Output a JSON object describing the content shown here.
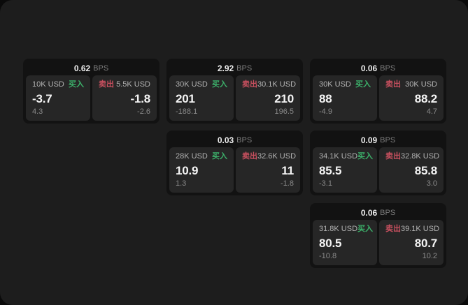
{
  "colors": {
    "buy_green": "#3cb06a",
    "sell_red": "#c8505f",
    "window_bg": "#1d1d1d",
    "card_bg": "#121212",
    "subcard_bg": "#262626"
  },
  "cards": [
    {
      "bps": "0.62",
      "bps_unit": "BPS",
      "buy": {
        "amount": "10K USD",
        "label": "买入",
        "value": "-3.7",
        "delta": "4.3"
      },
      "sell": {
        "label": "卖出",
        "amount": "5.5K USD",
        "value": "-1.8",
        "delta": "-2.6"
      }
    },
    {
      "bps": "2.92",
      "bps_unit": "BPS",
      "buy": {
        "amount": "30K USD",
        "label": "买入",
        "value": "201",
        "delta": "-188.1"
      },
      "sell": {
        "label": "卖出",
        "amount": "30.1K USD",
        "value": "210",
        "delta": "196.5"
      }
    },
    {
      "bps": "0.06",
      "bps_unit": "BPS",
      "buy": {
        "amount": "30K USD",
        "label": "买入",
        "value": "88",
        "delta": "-4.9"
      },
      "sell": {
        "label": "卖出",
        "amount": "30K USD",
        "value": "88.2",
        "delta": "4.7"
      }
    },
    {
      "bps": "0.03",
      "bps_unit": "BPS",
      "buy": {
        "amount": "28K USD",
        "label": "买入",
        "value": "10.9",
        "delta": "1.3"
      },
      "sell": {
        "label": "卖出",
        "amount": "32.6K USD",
        "value": "11",
        "delta": "-1.8"
      }
    },
    {
      "bps": "0.09",
      "bps_unit": "BPS",
      "buy": {
        "amount": "34.1K USD",
        "label": "买入",
        "value": "85.5",
        "delta": "-3.1"
      },
      "sell": {
        "label": "卖出",
        "amount": "32.8K USD",
        "value": "85.8",
        "delta": "3.0"
      }
    },
    {
      "bps": "0.06",
      "bps_unit": "BPS",
      "buy": {
        "amount": "31.8K USD",
        "label": "买入",
        "value": "80.5",
        "delta": "-10.8"
      },
      "sell": {
        "label": "卖出",
        "amount": "39.1K USD",
        "value": "80.7",
        "delta": "10.2"
      }
    }
  ]
}
